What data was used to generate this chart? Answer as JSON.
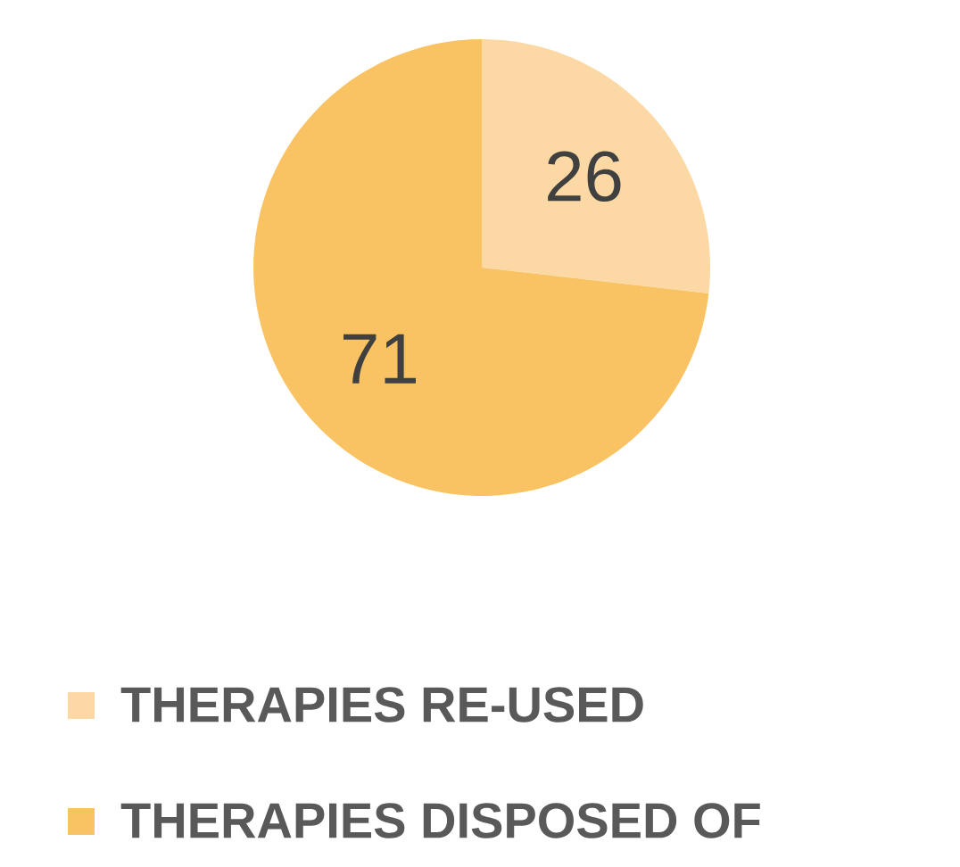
{
  "chart_data": {
    "type": "pie",
    "categories": [
      "THERAPIES RE-USED",
      "THERAPIES DISPOSED OF"
    ],
    "values": [
      26,
      71
    ],
    "colors": [
      "#fcd9a4",
      "#f9c262"
    ],
    "data_labels": true,
    "legend": "bottom"
  }
}
